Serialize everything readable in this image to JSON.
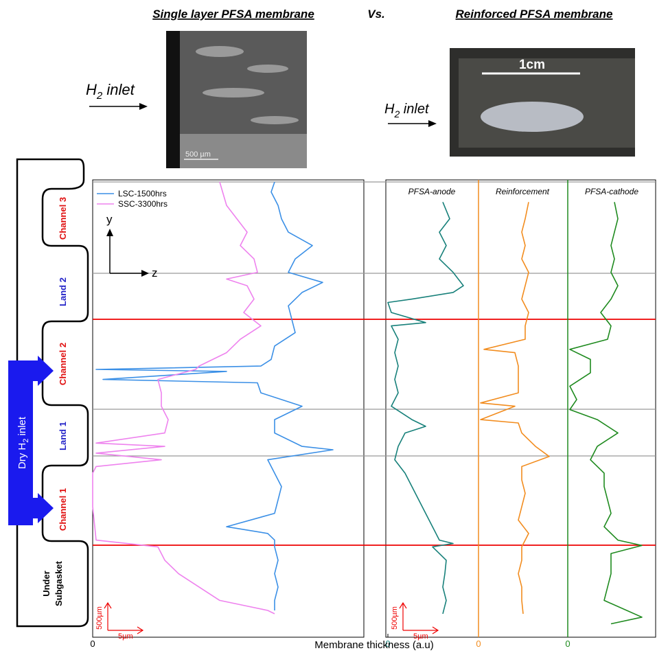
{
  "header": {
    "left": "Single layer PFSA membrane",
    "vs": "Vs.",
    "right": "Reinforced PFSA membrane"
  },
  "inlets": [
    {
      "main": "H",
      "sub": "2",
      "rest": " inlet"
    },
    {
      "main": "H",
      "sub": "2",
      "rest": " inlet"
    }
  ],
  "photos": {
    "left_scale": "500 µm",
    "right_scale": "1cm"
  },
  "axes_glyph": {
    "y": "y",
    "z": "z"
  },
  "scale_bars": [
    {
      "vertical": "500µm",
      "horizontal": "5µm"
    },
    {
      "vertical": "500µm",
      "horizontal": "5µm"
    }
  ],
  "schematic": {
    "regions": [
      {
        "label": "Channel 3",
        "color": "#e01010"
      },
      {
        "label": "Land 2",
        "color": "#2323c8"
      },
      {
        "label": "Channel 2",
        "color": "#e01010"
      },
      {
        "label": "Land 1",
        "color": "#2323c8"
      },
      {
        "label": "Channel 1",
        "color": "#e01010"
      }
    ],
    "under": [
      "Under",
      "Subgasket"
    ],
    "inlet": {
      "main": "Dry H",
      "sub": "2",
      "rest": " inlet"
    }
  },
  "xlabel": "Membrane thickness (a.u)",
  "chart_data": [
    {
      "type": "line",
      "xlim": [
        0,
        395
      ],
      "ylim": [
        0,
        680
      ],
      "xticks": [
        0
      ],
      "series": [
        {
          "name": "LSC-1500hrs",
          "color": "#3a8fe6",
          "positions": [
            680,
            665,
            645,
            625,
            605,
            585,
            565,
            545,
            530,
            515,
            495,
            475,
            455,
            435,
            415,
            405,
            400,
            397,
            385,
            380,
            365,
            345,
            325,
            305,
            285,
            280,
            265,
            245,
            225,
            205,
            185,
            165,
            155,
            145,
            135,
            115,
            95,
            75,
            55,
            40
          ],
          "values": [
            265,
            260,
            270,
            275,
            285,
            320,
            295,
            285,
            335,
            305,
            285,
            290,
            295,
            265,
            260,
            245,
            5,
            195,
            15,
            240,
            245,
            305,
            265,
            265,
            305,
            350,
            255,
            265,
            275,
            270,
            265,
            195,
            255,
            265,
            265,
            270,
            265,
            270,
            265,
            265
          ]
        },
        {
          "name": "SSC-3300hrs",
          "color": "#ee82ee",
          "positions": [
            680,
            645,
            625,
            605,
            585,
            565,
            545,
            535,
            525,
            505,
            485,
            465,
            445,
            425,
            405,
            400,
            385,
            365,
            345,
            325,
            305,
            290,
            285,
            275,
            265,
            255,
            245,
            195,
            145,
            135,
            115,
            95,
            75,
            55,
            40,
            35
          ],
          "values": [
            185,
            195,
            210,
            225,
            215,
            235,
            240,
            195,
            225,
            235,
            220,
            245,
            215,
            195,
            155,
            150,
            95,
            100,
            100,
            110,
            105,
            5,
            105,
            5,
            100,
            5,
            0,
            0,
            5,
            95,
            105,
            125,
            155,
            185,
            255,
            265
          ]
        }
      ]
    },
    {
      "type": "line",
      "title": "PFSA-anode",
      "xlim": [
        0,
        132
      ],
      "ylim": [
        0,
        680
      ],
      "xticks": [
        0
      ],
      "series": [
        {
          "color": "#17807a",
          "positions": [
            650,
            625,
            605,
            585,
            565,
            545,
            525,
            515,
            505,
            500,
            485,
            470,
            465,
            445,
            425,
            405,
            385,
            365,
            345,
            325,
            315,
            305,
            285,
            265,
            245,
            225,
            205,
            185,
            165,
            145,
            140,
            135,
            115,
            95,
            75,
            55,
            35
          ],
          "values": [
            80,
            90,
            75,
            85,
            75,
            95,
            110,
            95,
            35,
            0,
            5,
            55,
            5,
            15,
            10,
            15,
            10,
            15,
            5,
            35,
            55,
            25,
            15,
            10,
            25,
            35,
            45,
            55,
            65,
            75,
            95,
            65,
            85,
            83,
            80,
            85,
            80
          ]
        }
      ]
    },
    {
      "type": "line",
      "title": "Reinforcement",
      "xlim": [
        0,
        132
      ],
      "ylim": [
        0,
        680
      ],
      "xticks": [
        0
      ],
      "series": [
        {
          "color": "#f28c1e",
          "positions": [
            650,
            625,
            605,
            585,
            565,
            545,
            525,
            505,
            485,
            465,
            445,
            430,
            425,
            405,
            385,
            365,
            350,
            345,
            325,
            320,
            305,
            285,
            270,
            255,
            235,
            215,
            195,
            175,
            155,
            135,
            115,
            95,
            75,
            55,
            35
          ],
          "values": [
            73,
            68,
            63,
            68,
            63,
            73,
            68,
            63,
            73,
            68,
            68,
            8,
            53,
            58,
            58,
            58,
            3,
            53,
            3,
            58,
            63,
            83,
            103,
            63,
            63,
            68,
            63,
            58,
            73,
            63,
            63,
            58,
            63,
            63,
            65
          ]
        }
      ]
    },
    {
      "type": "line",
      "title": "PFSA-cathode",
      "xlim": [
        0,
        132
      ],
      "ylim": [
        0,
        680
      ],
      "xticks": [
        0
      ],
      "series": [
        {
          "color": "#1e8a1e",
          "positions": [
            650,
            625,
            605,
            585,
            565,
            545,
            525,
            505,
            485,
            465,
            445,
            430,
            415,
            395,
            375,
            355,
            340,
            325,
            305,
            285,
            265,
            245,
            225,
            205,
            185,
            165,
            145,
            137,
            125,
            95,
            75,
            55,
            30,
            20
          ],
          "values": [
            68,
            73,
            68,
            63,
            68,
            63,
            73,
            63,
            48,
            63,
            58,
            3,
            33,
            33,
            3,
            13,
            3,
            43,
            73,
            43,
            33,
            53,
            53,
            58,
            63,
            53,
            73,
            108,
            63,
            63,
            58,
            53,
            108,
            63
          ]
        }
      ]
    }
  ]
}
